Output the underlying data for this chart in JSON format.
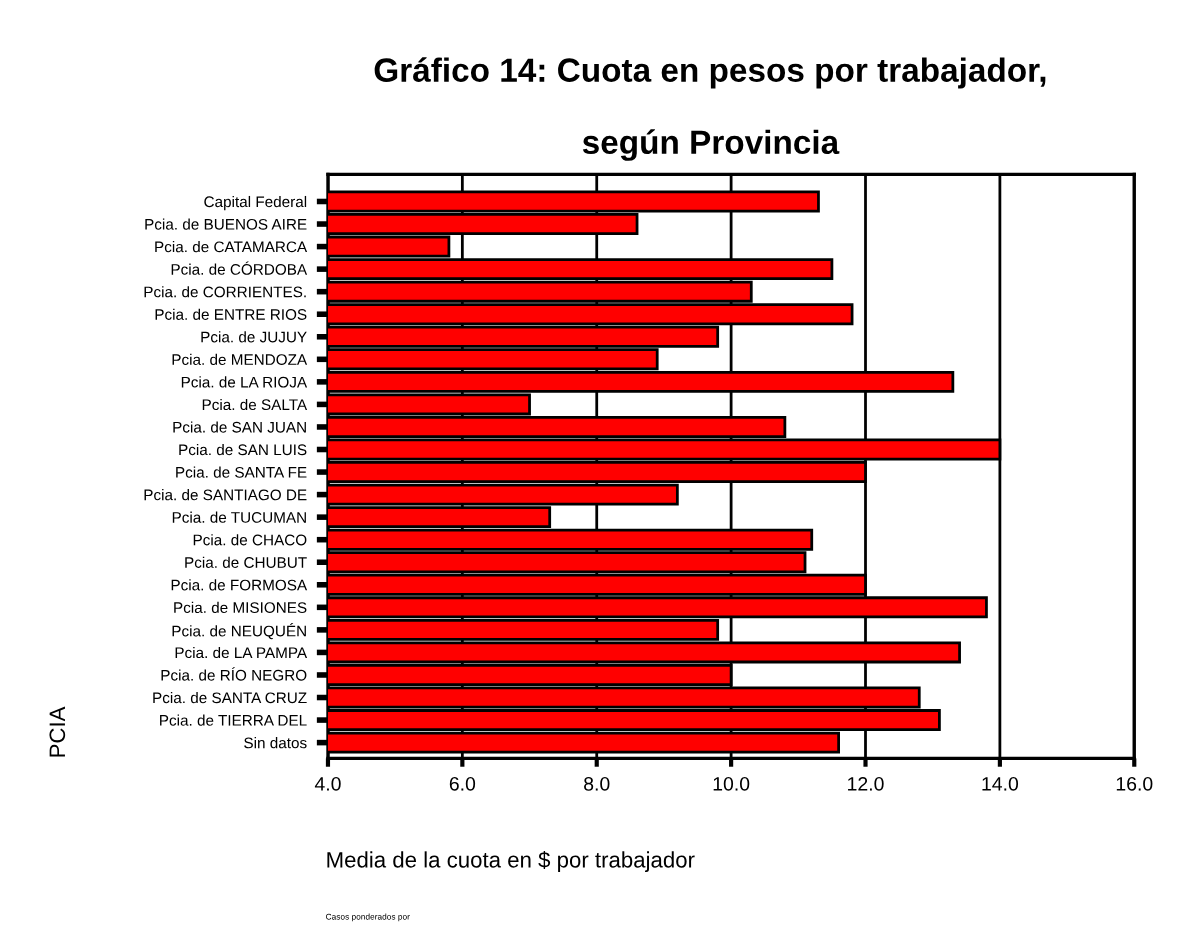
{
  "chart_data": {
    "type": "bar",
    "orientation": "horizontal",
    "title": "Gráfico 14: Cuota en pesos por trabajador,\n\nsegún Provincia",
    "xlabel": "Media de la cuota en $ por trabajador",
    "ylabel": "PCIA",
    "annotations": [
      "Casos ponderados por"
    ],
    "categories": [
      "Capital Federal",
      "Pcia. de BUENOS AIRE",
      "Pcia. de CATAMARCA",
      "Pcia. de CÓRDOBA",
      "Pcia. de CORRIENTES.",
      "Pcia. de ENTRE RIOS",
      "Pcia. de JUJUY",
      "Pcia. de MENDOZA",
      "Pcia. de LA RIOJA",
      "Pcia. de SALTA",
      "Pcia. de SAN JUAN",
      "Pcia. de SAN LUIS",
      "Pcia. de SANTA FE",
      "Pcia. de SANTIAGO DE",
      "Pcia. de TUCUMAN",
      "Pcia. de CHACO",
      "Pcia. de CHUBUT",
      "Pcia. de FORMOSA",
      "Pcia. de MISIONES",
      "Pcia. de NEUQUÉN",
      "Pcia. de LA PAMPA",
      "Pcia. de RÍO NEGRO",
      "Pcia. de SANTA CRUZ",
      "Pcia. de TIERRA DEL",
      "Sin datos"
    ],
    "values": [
      11.3,
      8.6,
      5.8,
      11.5,
      10.3,
      11.8,
      9.8,
      8.9,
      13.3,
      7.0,
      10.8,
      14.0,
      12.0,
      9.2,
      7.3,
      11.2,
      11.1,
      12.0,
      13.8,
      9.8,
      13.4,
      10.0,
      12.8,
      13.1,
      11.6
    ],
    "color": "#ff0000",
    "xlim": [
      4.0,
      16.0
    ],
    "xticks": [
      {
        "value": 4,
        "label": "4.0"
      },
      {
        "value": 6,
        "label": "6.0"
      },
      {
        "value": 8,
        "label": "8.0"
      },
      {
        "value": 10,
        "label": "10.0"
      },
      {
        "value": 12,
        "label": "12.0"
      },
      {
        "value": 14,
        "label": "14.0"
      },
      {
        "value": 16,
        "label": "16.0"
      }
    ],
    "grid": "x"
  }
}
